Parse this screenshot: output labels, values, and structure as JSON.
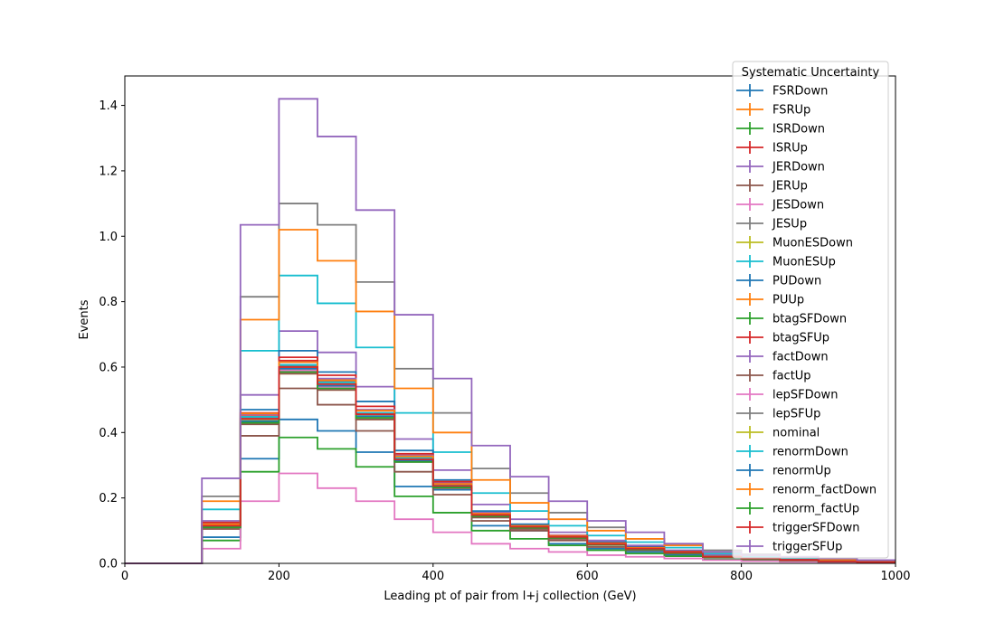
{
  "chart_data": {
    "type": "histogram-step",
    "xlabel": "Leading pt of pair from l+j collection (GeV)",
    "ylabel": "Events",
    "xlim": [
      0,
      1000
    ],
    "ylim": [
      0,
      1.49
    ],
    "xticks": [
      0,
      200,
      400,
      600,
      800,
      1000
    ],
    "yticks": [
      0.0,
      0.2,
      0.4,
      0.6,
      0.8,
      1.0,
      1.2,
      1.4
    ],
    "xtick_labels": [
      "0",
      "200",
      "400",
      "600",
      "800",
      "1000"
    ],
    "ytick_labels": [
      "0.0",
      "0.2",
      "0.4",
      "0.6",
      "0.8",
      "1.0",
      "1.2",
      "1.4"
    ],
    "grid": false,
    "bin_edges": [
      0,
      50,
      100,
      150,
      200,
      250,
      300,
      350,
      400,
      450,
      500,
      550,
      600,
      650,
      700,
      750,
      800,
      850,
      900,
      950,
      1000
    ],
    "legend": {
      "title": "Systematic Uncertainty",
      "placement": "upper right"
    },
    "series": [
      {
        "name": "FSRDown",
        "color": "#1f77b4",
        "values": [
          0,
          0,
          0.08,
          0.32,
          0.44,
          0.405,
          0.34,
          0.235,
          0.225,
          0.115,
          0.1,
          0.06,
          0.045,
          0.035,
          0.025,
          0.012,
          0.01,
          0.006,
          0.004,
          0.003
        ]
      },
      {
        "name": "FSRUp",
        "color": "#ff7f0e",
        "values": [
          0,
          0,
          0.12,
          0.44,
          0.58,
          0.53,
          0.44,
          0.315,
          0.235,
          0.145,
          0.11,
          0.08,
          0.06,
          0.045,
          0.035,
          0.02,
          0.015,
          0.01,
          0.006,
          0.004
        ]
      },
      {
        "name": "ISRDown",
        "color": "#2ca02c",
        "values": [
          0,
          0,
          0.07,
          0.28,
          0.385,
          0.35,
          0.295,
          0.205,
          0.155,
          0.1,
          0.075,
          0.055,
          0.04,
          0.03,
          0.022,
          0.012,
          0.009,
          0.006,
          0.004,
          0.003
        ]
      },
      {
        "name": "ISRUp",
        "color": "#d62728",
        "values": [
          0,
          0,
          0.12,
          0.45,
          0.62,
          0.56,
          0.46,
          0.33,
          0.24,
          0.15,
          0.11,
          0.08,
          0.06,
          0.045,
          0.035,
          0.02,
          0.015,
          0.01,
          0.006,
          0.004
        ]
      },
      {
        "name": "JERDown",
        "color": "#9467bd",
        "values": [
          0,
          0,
          0.13,
          0.515,
          0.71,
          0.645,
          0.54,
          0.38,
          0.285,
          0.18,
          0.135,
          0.095,
          0.07,
          0.055,
          0.04,
          0.025,
          0.018,
          0.012,
          0.008,
          0.005
        ]
      },
      {
        "name": "JERUp",
        "color": "#8c564b",
        "values": [
          0,
          0,
          0.105,
          0.39,
          0.535,
          0.485,
          0.405,
          0.28,
          0.21,
          0.13,
          0.1,
          0.07,
          0.05,
          0.04,
          0.03,
          0.018,
          0.013,
          0.009,
          0.006,
          0.004
        ]
      },
      {
        "name": "JESDown",
        "color": "#e377c2",
        "values": [
          0,
          0,
          0.045,
          0.19,
          0.275,
          0.23,
          0.19,
          0.135,
          0.095,
          0.06,
          0.045,
          0.035,
          0.025,
          0.02,
          0.015,
          0.01,
          0.007,
          0.005,
          0.003,
          0.002
        ]
      },
      {
        "name": "JESUp",
        "color": "#7f7f7f",
        "values": [
          0,
          0,
          0.205,
          0.815,
          1.1,
          1.035,
          0.86,
          0.595,
          0.46,
          0.29,
          0.215,
          0.155,
          0.11,
          0.075,
          0.06,
          0.04,
          0.028,
          0.02,
          0.013,
          0.009
        ]
      },
      {
        "name": "MuonESDown",
        "color": "#bcbd22",
        "values": [
          0,
          0,
          0.115,
          0.43,
          0.59,
          0.54,
          0.45,
          0.32,
          0.235,
          0.145,
          0.11,
          0.08,
          0.06,
          0.045,
          0.035,
          0.02,
          0.015,
          0.01,
          0.006,
          0.004
        ]
      },
      {
        "name": "MuonESUp",
        "color": "#17becf",
        "values": [
          0,
          0,
          0.165,
          0.65,
          0.88,
          0.795,
          0.66,
          0.46,
          0.34,
          0.215,
          0.16,
          0.115,
          0.085,
          0.065,
          0.048,
          0.03,
          0.022,
          0.015,
          0.01,
          0.007
        ]
      },
      {
        "name": "PUDown",
        "color": "#1f77b4",
        "values": [
          0,
          0,
          0.12,
          0.47,
          0.65,
          0.585,
          0.495,
          0.345,
          0.255,
          0.16,
          0.12,
          0.085,
          0.065,
          0.05,
          0.037,
          0.022,
          0.016,
          0.011,
          0.007,
          0.005
        ]
      },
      {
        "name": "PUUp",
        "color": "#ff7f0e",
        "values": [
          0,
          0,
          0.19,
          0.745,
          1.02,
          0.925,
          0.77,
          0.535,
          0.4,
          0.255,
          0.185,
          0.135,
          0.1,
          0.075,
          0.055,
          0.035,
          0.025,
          0.018,
          0.012,
          0.008
        ]
      },
      {
        "name": "btagSFDown",
        "color": "#2ca02c",
        "values": [
          0,
          0,
          0.11,
          0.43,
          0.595,
          0.54,
          0.45,
          0.315,
          0.235,
          0.145,
          0.11,
          0.08,
          0.06,
          0.045,
          0.035,
          0.02,
          0.015,
          0.01,
          0.006,
          0.004
        ]
      },
      {
        "name": "btagSFUp",
        "color": "#d62728",
        "values": [
          0,
          0,
          0.125,
          0.46,
          0.63,
          0.575,
          0.48,
          0.335,
          0.25,
          0.155,
          0.115,
          0.085,
          0.062,
          0.048,
          0.036,
          0.021,
          0.016,
          0.011,
          0.007,
          0.005
        ]
      },
      {
        "name": "factDown",
        "color": "#9467bd",
        "values": [
          0,
          0,
          0.12,
          0.455,
          0.615,
          0.565,
          0.47,
          0.33,
          0.245,
          0.155,
          0.115,
          0.082,
          0.06,
          0.046,
          0.034,
          0.02,
          0.015,
          0.01,
          0.007,
          0.005
        ]
      },
      {
        "name": "factUp",
        "color": "#8c564b",
        "values": [
          0,
          0,
          0.11,
          0.425,
          0.58,
          0.53,
          0.44,
          0.31,
          0.23,
          0.14,
          0.105,
          0.075,
          0.056,
          0.043,
          0.032,
          0.019,
          0.014,
          0.009,
          0.006,
          0.004
        ]
      },
      {
        "name": "lepSFDown",
        "color": "#e377c2",
        "values": [
          0,
          0,
          0.112,
          0.435,
          0.59,
          0.54,
          0.45,
          0.315,
          0.235,
          0.145,
          0.11,
          0.08,
          0.058,
          0.044,
          0.033,
          0.02,
          0.014,
          0.01,
          0.006,
          0.004
        ]
      },
      {
        "name": "lepSFUp",
        "color": "#7f7f7f",
        "values": [
          0,
          0,
          0.118,
          0.445,
          0.605,
          0.555,
          0.46,
          0.322,
          0.24,
          0.15,
          0.113,
          0.082,
          0.06,
          0.046,
          0.034,
          0.021,
          0.015,
          0.01,
          0.007,
          0.005
        ]
      },
      {
        "name": "nominal",
        "color": "#bcbd22",
        "values": [
          0,
          0,
          0.115,
          0.44,
          0.6,
          0.548,
          0.455,
          0.318,
          0.238,
          0.148,
          0.112,
          0.081,
          0.059,
          0.045,
          0.034,
          0.02,
          0.015,
          0.01,
          0.006,
          0.004
        ]
      },
      {
        "name": "renormDown",
        "color": "#17becf",
        "values": [
          0,
          0,
          0.117,
          0.448,
          0.607,
          0.553,
          0.46,
          0.322,
          0.24,
          0.15,
          0.113,
          0.082,
          0.06,
          0.046,
          0.034,
          0.021,
          0.015,
          0.01,
          0.007,
          0.005
        ]
      },
      {
        "name": "renormUp",
        "color": "#1f77b4",
        "values": [
          0,
          0,
          0.113,
          0.435,
          0.595,
          0.543,
          0.45,
          0.315,
          0.236,
          0.147,
          0.111,
          0.08,
          0.058,
          0.044,
          0.033,
          0.02,
          0.014,
          0.01,
          0.006,
          0.004
        ]
      },
      {
        "name": "renorm_factDown",
        "color": "#ff7f0e",
        "values": [
          0,
          0,
          0.12,
          0.458,
          0.615,
          0.56,
          0.467,
          0.327,
          0.243,
          0.152,
          0.115,
          0.083,
          0.061,
          0.047,
          0.035,
          0.021,
          0.015,
          0.01,
          0.007,
          0.005
        ]
      },
      {
        "name": "renorm_factUp",
        "color": "#2ca02c",
        "values": [
          0,
          0,
          0.11,
          0.43,
          0.585,
          0.535,
          0.445,
          0.31,
          0.232,
          0.144,
          0.109,
          0.078,
          0.057,
          0.043,
          0.032,
          0.019,
          0.014,
          0.009,
          0.006,
          0.004
        ]
      },
      {
        "name": "triggerSFDown",
        "color": "#d62728",
        "values": [
          0,
          0,
          0.115,
          0.442,
          0.6,
          0.548,
          0.456,
          0.318,
          0.237,
          0.148,
          0.112,
          0.081,
          0.059,
          0.045,
          0.034,
          0.02,
          0.015,
          0.01,
          0.006,
          0.004
        ]
      },
      {
        "name": "triggerSFUp",
        "color": "#9467bd",
        "values": [
          0,
          0,
          0.26,
          1.035,
          1.42,
          1.305,
          1.08,
          0.76,
          0.565,
          0.36,
          0.265,
          0.19,
          0.13,
          0.095,
          0.06,
          0.035,
          0.025,
          0.02,
          0.015,
          0.01
        ]
      }
    ]
  }
}
